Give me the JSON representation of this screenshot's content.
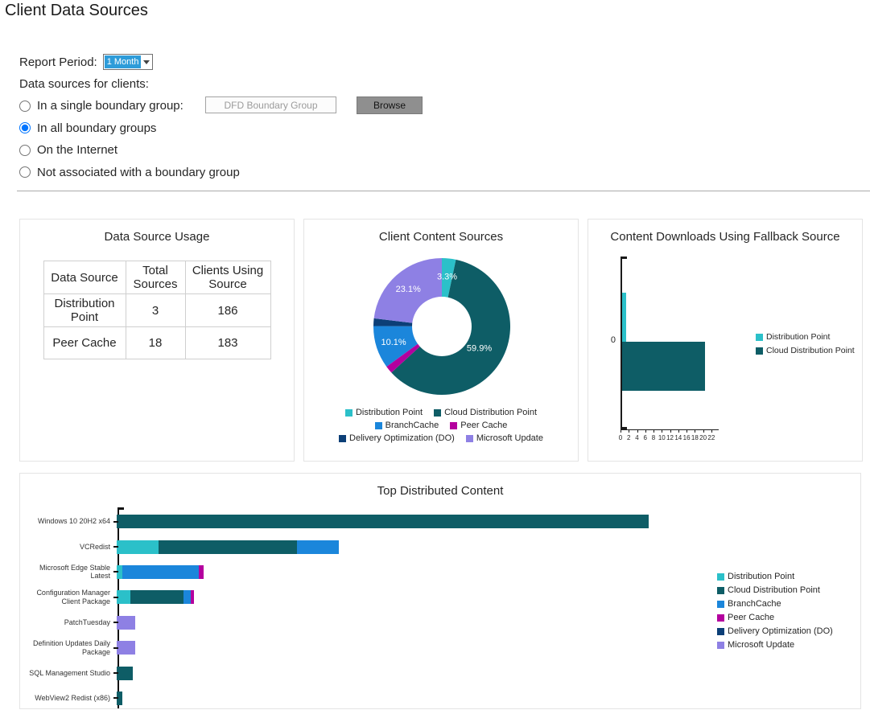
{
  "page": {
    "title": "Client Data Sources"
  },
  "controls": {
    "report_period_label": "Report Period:",
    "report_period_value": "1 Month",
    "data_sources_label": "Data sources for clients:",
    "radio_options": [
      {
        "label": "In a single boundary group:",
        "checked": false
      },
      {
        "label": "In all boundary groups",
        "checked": true
      },
      {
        "label": "On the Internet",
        "checked": false
      },
      {
        "label": "Not associated with a boundary group",
        "checked": false
      }
    ],
    "boundary_group_value": "DFD Boundary Group",
    "browse_label": "Browse"
  },
  "colors": {
    "distribution_point": "#2BC0C9",
    "cloud_distribution_point": "#0E5D66",
    "branchcache": "#1B86DB",
    "peer_cache": "#B4009E",
    "delivery_optimization": "#0C3F77",
    "microsoft_update": "#8E80E4",
    "select_highlight": "#2E9CD9"
  },
  "usage_panel": {
    "title": "Data Source Usage",
    "table": {
      "headers": [
        "Data Source",
        "Total Sources",
        "Clients Using Source"
      ],
      "rows": [
        [
          "Distribution Point",
          "3",
          "186"
        ],
        [
          "Peer Cache",
          "18",
          "183"
        ]
      ]
    }
  },
  "chart_data": [
    {
      "type": "pie",
      "donut": true,
      "title": "Client Content Sources",
      "slices": [
        {
          "name": "Distribution Point",
          "value": 3.3,
          "color_key": "distribution_point",
          "label": "3.3%"
        },
        {
          "name": "Cloud Distribution Point",
          "value": 59.9,
          "color_key": "cloud_distribution_point",
          "label": "59.9%"
        },
        {
          "name": "Peer Cache",
          "value": 1.8,
          "color_key": "peer_cache",
          "label": ""
        },
        {
          "name": "BranchCache",
          "value": 10.1,
          "color_key": "branchcache",
          "label": "10.1%"
        },
        {
          "name": "Delivery Optimization (DO)",
          "value": 1.8,
          "color_key": "delivery_optimization",
          "label": ""
        },
        {
          "name": "Microsoft Update",
          "value": 23.1,
          "color_key": "microsoft_update",
          "label": "23.1%"
        }
      ],
      "legend": [
        {
          "label": "Distribution Point",
          "color_key": "distribution_point"
        },
        {
          "label": "Cloud Distribution Point",
          "color_key": "cloud_distribution_point"
        },
        {
          "label": "BranchCache",
          "color_key": "branchcache"
        },
        {
          "label": "Peer Cache",
          "color_key": "peer_cache"
        },
        {
          "label": "Delivery Optimization (DO)",
          "color_key": "delivery_optimization"
        },
        {
          "label": "Microsoft Update",
          "color_key": "microsoft_update"
        }
      ],
      "legend_position": "bottom"
    },
    {
      "type": "bar",
      "orientation": "horizontal",
      "title": "Content Downloads Using Fallback Source",
      "categories": [
        "0"
      ],
      "series": [
        {
          "name": "Distribution Point",
          "color_key": "distribution_point",
          "values": [
            1
          ]
        },
        {
          "name": "Cloud Distribution Point",
          "color_key": "cloud_distribution_point",
          "values": [
            20
          ]
        }
      ],
      "x_ticks": [
        "0",
        "2",
        "4",
        "6",
        "8",
        "10",
        "12",
        "14",
        "16",
        "18",
        "20",
        "22"
      ],
      "xlim": [
        0,
        23
      ],
      "legend": [
        {
          "label": "Distribution Point",
          "color_key": "distribution_point"
        },
        {
          "label": "Cloud Distribution Point",
          "color_key": "cloud_distribution_point"
        }
      ],
      "legend_position": "right"
    },
    {
      "type": "bar",
      "orientation": "horizontal",
      "stacked": true,
      "title": "Top Distributed Content",
      "categories": [
        "Windows 10 20H2 x64",
        "VCRedist",
        "Microsoft Edge Stable Latest",
        "Configuration Manager Client Package",
        "PatchTuesday",
        "Definition Updates Daily Package",
        "SQL Management Studio",
        "WebView2 Redist (x86)"
      ],
      "series": [
        {
          "name": "Distribution Point",
          "color_key": "distribution_point",
          "values": [
            0,
            1.8,
            0.25,
            0.6,
            0,
            0,
            0,
            0
          ]
        },
        {
          "name": "Cloud Distribution Point",
          "color_key": "cloud_distribution_point",
          "values": [
            23,
            6,
            0,
            2.3,
            0,
            0,
            0.7,
            0.25
          ]
        },
        {
          "name": "BranchCache",
          "color_key": "branchcache",
          "values": [
            0,
            1.8,
            3.3,
            0.3,
            0,
            0,
            0,
            0
          ]
        },
        {
          "name": "Peer Cache",
          "color_key": "peer_cache",
          "values": [
            0,
            0,
            0.2,
            0.15,
            0,
            0,
            0,
            0
          ]
        },
        {
          "name": "Delivery Optimization (DO)",
          "color_key": "delivery_optimization",
          "values": [
            0,
            0,
            0,
            0,
            0,
            0,
            0,
            0
          ]
        },
        {
          "name": "Microsoft Update",
          "color_key": "microsoft_update",
          "values": [
            0,
            0,
            0,
            0,
            0.8,
            0.8,
            0,
            0
          ]
        }
      ],
      "xlim": [
        0,
        24
      ],
      "legend": [
        {
          "label": "Distribution Point",
          "color_key": "distribution_point"
        },
        {
          "label": "Cloud Distribution Point",
          "color_key": "cloud_distribution_point"
        },
        {
          "label": "BranchCache",
          "color_key": "branchcache"
        },
        {
          "label": "Peer Cache",
          "color_key": "peer_cache"
        },
        {
          "label": "Delivery Optimization (DO)",
          "color_key": "delivery_optimization"
        },
        {
          "label": "Microsoft Update",
          "color_key": "microsoft_update"
        }
      ],
      "legend_position": "right"
    }
  ]
}
